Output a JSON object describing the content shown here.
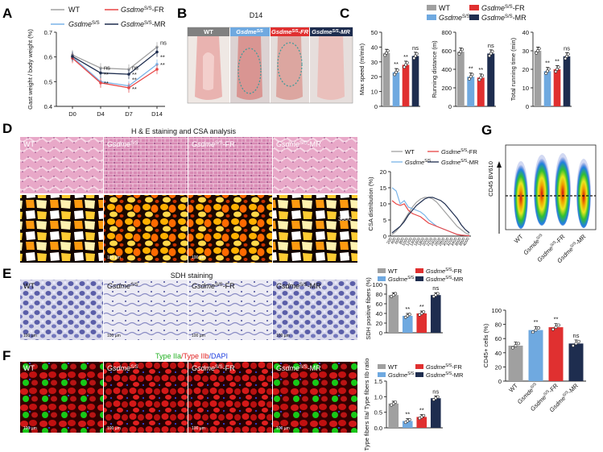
{
  "colors": {
    "wt": "#a0a0a0",
    "ss": "#6fa9e0",
    "fr": "#e03030",
    "mr": "#1e2d4f",
    "wt_line": "#a0a0a0",
    "ss_line": "#7ab4e8",
    "fr_line": "#e84545",
    "mr_line": "#1e2d4f"
  },
  "legend": {
    "wt": "WT",
    "ss": "Gsdme",
    "ss_sup": "S/S",
    "fr": "-FR",
    "mr": "-MR"
  },
  "sig": {
    "dd": "**",
    "ns": "ns"
  },
  "panels": {
    "A": "A",
    "B": "B",
    "C": "C",
    "D": "D",
    "E": "E",
    "F": "F",
    "G": "G"
  },
  "chart_data": [
    {
      "type": "line",
      "id": "A",
      "ylabel": "Gast weight / body weight (%)",
      "x": [
        "D0",
        "D4",
        "D7",
        "D14"
      ],
      "ylim": [
        0.4,
        0.7
      ],
      "yticks": [
        "0.4",
        "0.5",
        "0.6",
        "0.7"
      ],
      "series": [
        {
          "name": "WT",
          "values": [
            0.608,
            0.555,
            0.55,
            0.64
          ]
        },
        {
          "name": "GsdmeS/S",
          "values": [
            0.6,
            0.5,
            0.483,
            0.57
          ]
        },
        {
          "name": "GsdmeS/S-FR",
          "values": [
            0.595,
            0.495,
            0.475,
            0.55
          ]
        },
        {
          "name": "GsdmeS/S-MR",
          "values": [
            0.602,
            0.535,
            0.53,
            0.62
          ]
        }
      ],
      "annotations": [
        "ns",
        "**",
        "**",
        "ns",
        "**",
        "**",
        "**",
        "ns",
        "**",
        "**"
      ]
    },
    {
      "type": "bar",
      "id": "C1",
      "ylabel": "Max speed (m/min)",
      "categories": [
        "WT",
        "GsdmeS/S",
        "GsdmeS/S-FR",
        "GsdmeS/S-MR"
      ],
      "values": [
        36,
        23,
        28,
        34
      ],
      "ylim": [
        0,
        50
      ],
      "yticks": [
        "0",
        "10",
        "20",
        "30",
        "40",
        "50"
      ],
      "annotations": [
        "",
        "**",
        "**",
        "ns"
      ]
    },
    {
      "type": "bar",
      "id": "C2",
      "ylabel": "Running distance (m)",
      "categories": [
        "WT",
        "GsdmeS/S",
        "GsdmeS/S-FR",
        "GsdmeS/S-MR"
      ],
      "values": [
        590,
        320,
        310,
        570
      ],
      "ylim": [
        0,
        800
      ],
      "yticks": [
        "0",
        "200",
        "400",
        "600",
        "800"
      ],
      "annotations": [
        "",
        "**",
        "**",
        "ns"
      ]
    },
    {
      "type": "bar",
      "id": "C3",
      "ylabel": "Total running time (min)",
      "categories": [
        "WT",
        "GsdmeS/S",
        "GsdmeS/S-FR",
        "GsdmeS/S-MR"
      ],
      "values": [
        30,
        19,
        20,
        27
      ],
      "ylim": [
        0,
        40
      ],
      "yticks": [
        "0",
        "10",
        "20",
        "30",
        "40"
      ],
      "annotations": [
        "",
        "**",
        "**",
        "ns"
      ]
    },
    {
      "type": "line",
      "id": "D",
      "ylabel": "CSA distribution (%)",
      "ylim": [
        0,
        20
      ],
      "yticks": [
        "0",
        "5",
        "10",
        "15",
        "20"
      ],
      "x": [
        "200",
        "400",
        "600",
        "800",
        "1000",
        "1200",
        "1400",
        "1600",
        "1800",
        "2000",
        "2200",
        "2400",
        "2600",
        "2800",
        "3000",
        "3200",
        "3400",
        "3600",
        "3800",
        "4000"
      ],
      "series": [
        {
          "name": "WT",
          "values": [
            0.5,
            1.5,
            3,
            5,
            7,
            9,
            10.5,
            11.5,
            12,
            12,
            11.5,
            10.5,
            9,
            7.5,
            6,
            4.5,
            3,
            2,
            1,
            0.5
          ]
        },
        {
          "name": "GsdmeS/S",
          "values": [
            15,
            14,
            10,
            11,
            9,
            8.5,
            8,
            7.5,
            6.5,
            5,
            4,
            3,
            2.5,
            2,
            1.5,
            1,
            0.5,
            0.3,
            0.2,
            0.1
          ]
        },
        {
          "name": "GsdmeS/S-FR",
          "values": [
            11,
            10,
            9.5,
            10,
            8,
            7,
            6.5,
            6,
            5,
            4,
            3.5,
            3,
            2.5,
            2,
            1.5,
            1,
            0.5,
            0.3,
            0.2,
            0.1
          ]
        },
        {
          "name": "GsdmeS/S-MR",
          "values": [
            1,
            2,
            3,
            4.5,
            6.5,
            8,
            9.5,
            10.5,
            11.5,
            12,
            12,
            11.5,
            11,
            10,
            8.5,
            7,
            5.5,
            3.5,
            2,
            1
          ]
        }
      ]
    },
    {
      "type": "bar",
      "id": "E",
      "ylabel": "SDH positive fibers (%)",
      "categories": [
        "WT",
        "GsdmeS/S",
        "GsdmeS/S-FR",
        "GsdmeS/S-MR"
      ],
      "values": [
        78,
        35,
        40,
        78
      ],
      "ylim": [
        0,
        100
      ],
      "yticks": [
        "0",
        "20",
        "40",
        "60",
        "80",
        "100"
      ],
      "annotations": [
        "",
        "**",
        "**",
        "ns"
      ]
    },
    {
      "type": "bar",
      "id": "F",
      "ylabel": "Type fibers IIa/ Type fibers IIb ratio",
      "categories": [
        "WT",
        "GsdmeS/S",
        "GsdmeS/S-FR",
        "GsdmeS/S-MR"
      ],
      "values": [
        0.78,
        0.22,
        0.35,
        0.95
      ],
      "ylim": [
        0,
        1.5
      ],
      "yticks": [
        "0.0",
        "0.5",
        "1.0",
        "1.5"
      ],
      "annotations": [
        "",
        "**",
        "**",
        "ns"
      ]
    },
    {
      "type": "bar",
      "id": "G",
      "ylabel": "CD45+ cells (%)",
      "categories": [
        "WT",
        "GsmdeS/S",
        "GsdmeS/S-FR",
        "GsdmeS/S-MR"
      ],
      "values": [
        50,
        72,
        76,
        53
      ],
      "ylim": [
        0,
        100
      ],
      "yticks": [
        "0",
        "20",
        "40",
        "60",
        "80",
        "100"
      ],
      "annotations": [
        "",
        "**",
        "**",
        "ns"
      ]
    }
  ],
  "B": {
    "title": "D14",
    "labels": [
      "WT",
      "Gsdme",
      "Gsdme",
      "Gsdme"
    ],
    "sup": "S/S",
    "fr": "-FR",
    "mr": "-MR"
  },
  "D": {
    "title": "H & E staining and CSA analysis",
    "labels": [
      "WT",
      "Gsdme",
      "Gsdme",
      "Gsdme"
    ],
    "sup": "S/S",
    "fr": "-FR",
    "mr": "-MR",
    "scale": "100 µm",
    "max": "3000",
    "min": "0"
  },
  "E": {
    "title": "SDH staining",
    "labels": [
      "WT",
      "Gsdme",
      "Gsdme",
      "Gsdme"
    ],
    "sup": "S/S",
    "fr": "-FR",
    "mr": "-MR",
    "scale": "100 µm"
  },
  "F": {
    "title_a": "Type IIa",
    "title_b": "/Type IIb",
    "title_c": "/DAPI",
    "labels": [
      "WT",
      "Gsdme",
      "Gsdme",
      "Gsdme"
    ],
    "sup": "S/S",
    "fr": "-FR",
    "mr": "-MR",
    "scale": "100 µm"
  },
  "G": {
    "flow_ylabel": "CD45 BV610",
    "xlabels": [
      "WT",
      "Gsmde",
      "Gsdme",
      "Gsdme"
    ],
    "sup": "S/S",
    "fr": "-FR",
    "mr": "-MR"
  }
}
